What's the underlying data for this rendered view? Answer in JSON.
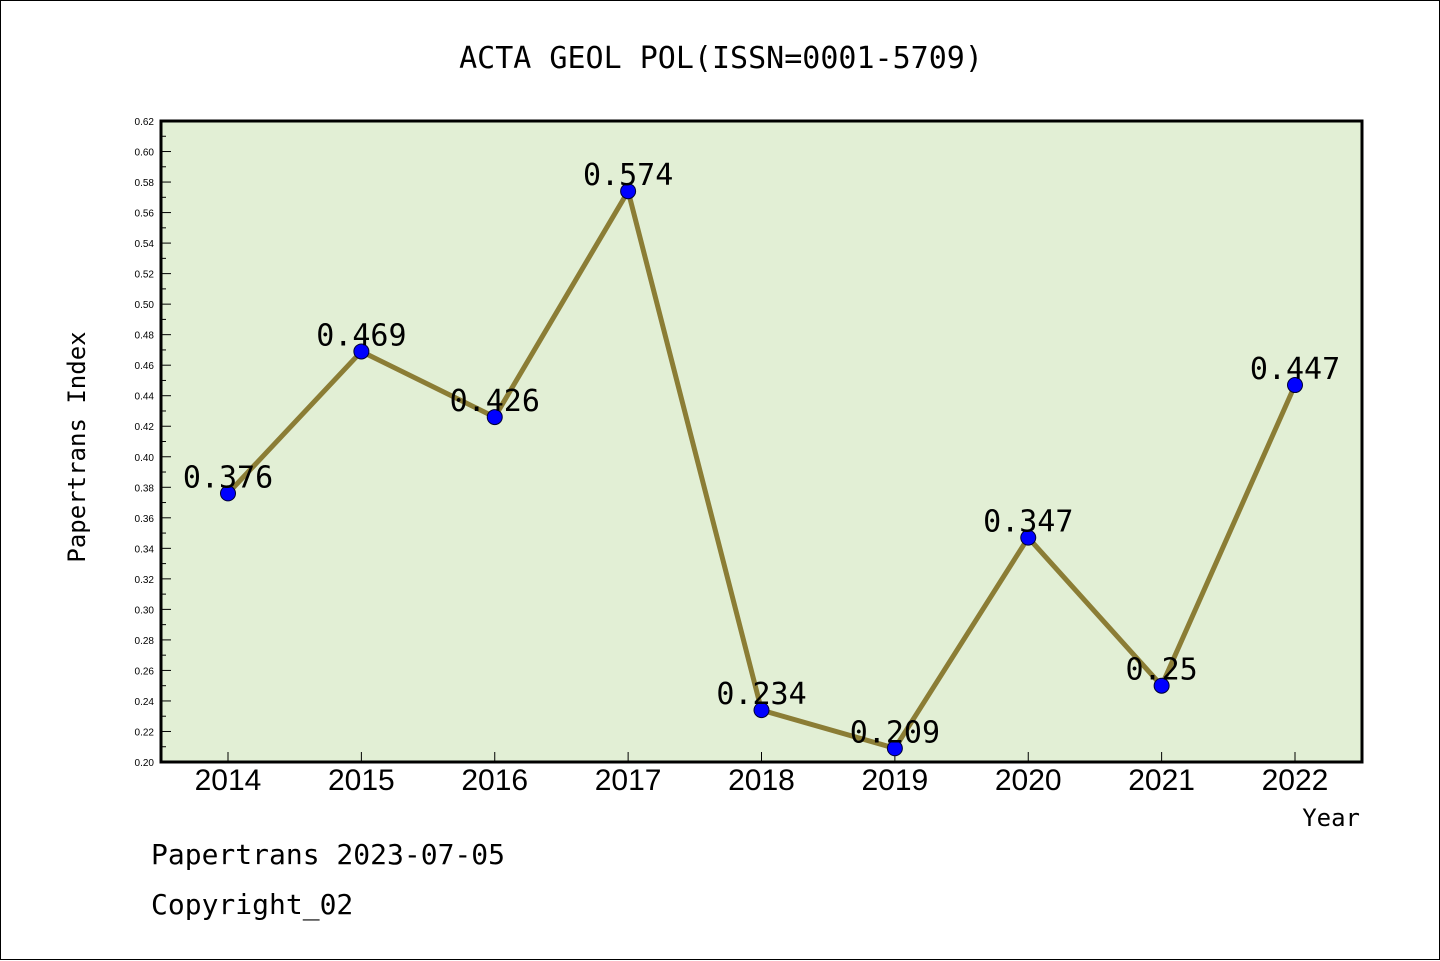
{
  "chart_data": {
    "type": "line",
    "title": "ACTA GEOL POL(ISSN=0001-5709)",
    "xlabel": "Year",
    "ylabel": "Papertrans Index",
    "categories": [
      "2014",
      "2015",
      "2016",
      "2017",
      "2018",
      "2019",
      "2020",
      "2021",
      "2022"
    ],
    "values": [
      0.376,
      0.469,
      0.426,
      0.574,
      0.234,
      0.209,
      0.347,
      0.25,
      0.447
    ],
    "data_labels": [
      "0.376",
      "0.469",
      "0.426",
      "0.574",
      "0.234",
      "0.209",
      "0.347",
      "0.25",
      "0.447"
    ],
    "ylim": [
      0.2,
      0.62
    ],
    "yticks": [
      "0.20",
      "0.22",
      "0.24",
      "0.26",
      "0.28",
      "0.30",
      "0.32",
      "0.34",
      "0.36",
      "0.38",
      "0.40",
      "0.42",
      "0.44",
      "0.46",
      "0.48",
      "0.50",
      "0.52",
      "0.54",
      "0.56",
      "0.58",
      "0.60",
      "0.62"
    ],
    "grid": false,
    "colors": {
      "plot_background": "#e2efd5",
      "line": "#8b7d35",
      "marker": "#0000ff"
    }
  },
  "footer": {
    "date_line": "Papertrans 2023-07-05",
    "copyright": "Copyright_02"
  }
}
